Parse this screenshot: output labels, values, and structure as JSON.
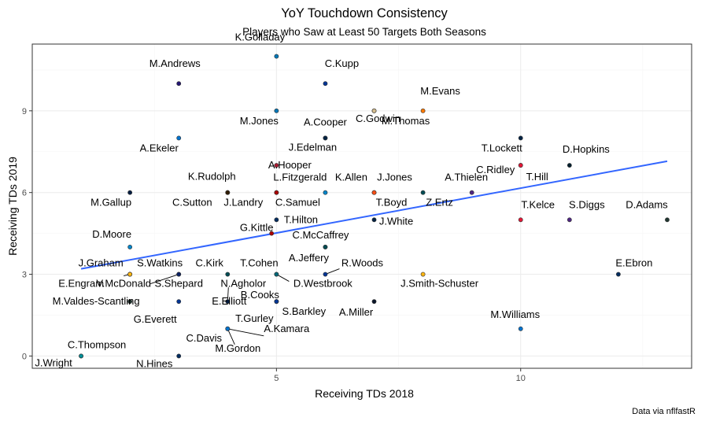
{
  "title": "YoY Touchdown Consistency",
  "subtitle": "Players who Saw at Least 50 Targets Both Seasons",
  "caption": "Data via nflfastR",
  "chart_data": {
    "type": "scatter",
    "title": "YoY Touchdown Consistency",
    "subtitle": "Players who Saw at Least 50 Targets Both Seasons",
    "xlabel": "Receiving TDs 2018",
    "ylabel": "Receiving TDs 2019",
    "xlim": [
      0.0,
      13.5
    ],
    "ylim": [
      -0.45,
      11.45
    ],
    "x_ticks": [
      5,
      10
    ],
    "y_ticks": [
      0,
      3,
      6,
      9
    ],
    "grid": true,
    "trend_line": {
      "x": [
        1,
        13
      ],
      "y": [
        3.2,
        7.15
      ],
      "color": "#3366ff"
    },
    "points": [
      {
        "name": "K.Golladay",
        "x": 5,
        "y": 11,
        "color": "#0076B6"
      },
      {
        "name": "M.Andrews",
        "x": 3,
        "y": 10,
        "color": "#241773"
      },
      {
        "name": "C.Kupp",
        "x": 6,
        "y": 10,
        "color": "#003594"
      },
      {
        "name": "C.Godwin",
        "x": 7,
        "y": 9,
        "color": "#D50A0A"
      },
      {
        "name": "M.Evans",
        "x": 8,
        "y": 9,
        "color": "#FF7900"
      },
      {
        "name": "M.Jones",
        "x": 5,
        "y": 9,
        "color": "#0076B6"
      },
      {
        "name": "M.Thomas",
        "x": 7,
        "y": 9,
        "color": "#D3BC8D"
      },
      {
        "name": "A.Cooper",
        "x": 6,
        "y": 8,
        "color": "#002244"
      },
      {
        "name": "A.Ekeler",
        "x": 3,
        "y": 8,
        "color": "#0073CF"
      },
      {
        "name": "T.Lockett",
        "x": 10,
        "y": 8,
        "color": "#002244"
      },
      {
        "name": "J.Edelman",
        "x": 6,
        "y": 8,
        "color": "#002244"
      },
      {
        "name": "D.Hopkins",
        "x": 11,
        "y": 7,
        "color": "#03202F"
      },
      {
        "name": "A.Hooper",
        "x": 5,
        "y": 7,
        "color": "#A71930"
      },
      {
        "name": "C.Ridley",
        "x": 10,
        "y": 7,
        "color": "#A71930"
      },
      {
        "name": "T.Hill",
        "x": 10,
        "y": 7,
        "color": "#E31837"
      },
      {
        "name": "K.Rudolph",
        "x": 4,
        "y": 6,
        "color": "#4F2683"
      },
      {
        "name": "L.Fitzgerald",
        "x": 5,
        "y": 6,
        "color": "#97233F"
      },
      {
        "name": "K.Allen",
        "x": 6,
        "y": 6,
        "color": "#0085CA"
      },
      {
        "name": "J.Jones",
        "x": 7,
        "y": 6,
        "color": "#A71930"
      },
      {
        "name": "A.Thielen",
        "x": 9,
        "y": 6,
        "color": "#4F2683"
      },
      {
        "name": "M.Gallup",
        "x": 2,
        "y": 6,
        "color": "#041E42"
      },
      {
        "name": "C.Sutton",
        "x": 4,
        "y": 6,
        "color": "#FB4F14"
      },
      {
        "name": "J.Landry",
        "x": 4,
        "y": 6,
        "color": "#311D00"
      },
      {
        "name": "C.Samuel",
        "x": 5,
        "y": 6,
        "color": "#AA0000"
      },
      {
        "name": "T.Boyd",
        "x": 7,
        "y": 6,
        "color": "#FB4F14"
      },
      {
        "name": "Z.Ertz",
        "x": 8,
        "y": 6,
        "color": "#004C54"
      },
      {
        "name": "T.Kelce",
        "x": 10,
        "y": 5,
        "color": "#E31837"
      },
      {
        "name": "S.Diggs",
        "x": 11,
        "y": 5,
        "color": "#4F2683"
      },
      {
        "name": "D.Adams",
        "x": 13,
        "y": 5,
        "color": "#203731"
      },
      {
        "name": "T.Hilton",
        "x": 5,
        "y": 5,
        "color": "#002C5F"
      },
      {
        "name": "J.White",
        "x": 7,
        "y": 5,
        "color": "#002244"
      },
      {
        "name": "G.Kittle",
        "x": 4.9,
        "y": 4.5,
        "color": "#AA0000"
      },
      {
        "name": "D.Moore",
        "x": 2,
        "y": 4,
        "color": "#0085CA"
      },
      {
        "name": "C.McCaffrey",
        "x": 6,
        "y": 4,
        "color": "#0085CA"
      },
      {
        "name": "A.Jeffery",
        "x": 6,
        "y": 4,
        "color": "#004C54"
      },
      {
        "name": "J.Graham",
        "x": 2,
        "y": 3,
        "color": "#203731"
      },
      {
        "name": "S.Watkins",
        "x": 2,
        "y": 3,
        "color": "#E31837"
      },
      {
        "name": "C.Kirk",
        "x": 3,
        "y": 3,
        "color": "#97233F"
      },
      {
        "name": "T.Cohen",
        "x": 5,
        "y": 3,
        "color": "#0B162A"
      },
      {
        "name": "R.Woods",
        "x": 6,
        "y": 3,
        "color": "#003594"
      },
      {
        "name": "E.Engram",
        "x": 2,
        "y": 3,
        "color": "#0B2265"
      },
      {
        "name": "V.McDonald",
        "x": 2,
        "y": 3,
        "color": "#FFB612"
      },
      {
        "name": "S.Shepard",
        "x": 3,
        "y": 3,
        "color": "#0B2265"
      },
      {
        "name": "N.Agholor",
        "x": 4,
        "y": 3,
        "color": "#004C54"
      },
      {
        "name": "D.Westbrook",
        "x": 5,
        "y": 3,
        "color": "#006778"
      },
      {
        "name": "J.Smith-Schuster",
        "x": 8,
        "y": 3,
        "color": "#FFB612"
      },
      {
        "name": "E.Ebron",
        "x": 12,
        "y": 3,
        "color": "#002C5F"
      },
      {
        "name": "M.Valdes-Scantling",
        "x": 2,
        "y": 2,
        "color": "#203731"
      },
      {
        "name": "B.Cooks",
        "x": 5,
        "y": 2,
        "color": "#003594"
      },
      {
        "name": "E.Elliott",
        "x": 4,
        "y": 2,
        "color": "#041E42"
      },
      {
        "name": "S.Barkley",
        "x": 5,
        "y": 2,
        "color": "#0B2265"
      },
      {
        "name": "A.Miller",
        "x": 7,
        "y": 2,
        "color": "#0B162A"
      },
      {
        "name": "G.Everett",
        "x": 3,
        "y": 2,
        "color": "#003594"
      },
      {
        "name": "T.Gurley",
        "x": 5,
        "y": 2,
        "color": "#003594"
      },
      {
        "name": "M.Williams",
        "x": 10,
        "y": 1,
        "color": "#0073CF"
      },
      {
        "name": "C.Davis",
        "x": 4,
        "y": 1,
        "color": "#0C2340"
      },
      {
        "name": "A.Kamara",
        "x": 4,
        "y": 1,
        "color": "#D3BC8D"
      },
      {
        "name": "M.Gordon",
        "x": 4,
        "y": 1,
        "color": "#0073CF"
      },
      {
        "name": "C.Thompson",
        "x": 1,
        "y": 0,
        "color": "#0085CA"
      },
      {
        "name": "J.Wright",
        "x": 1,
        "y": 0,
        "color": "#008E97"
      },
      {
        "name": "N.Hines",
        "x": 3,
        "y": 0,
        "color": "#002C5F"
      }
    ]
  }
}
